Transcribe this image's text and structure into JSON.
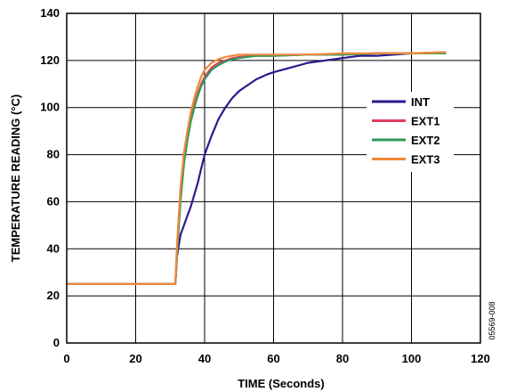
{
  "chart_data": {
    "type": "line",
    "title": "",
    "xlabel": "TIME (Seconds)",
    "ylabel": "TEMPERATURE READING (°C)",
    "xlim": [
      0,
      120
    ],
    "ylim": [
      0,
      140
    ],
    "xticks": [
      0,
      20,
      40,
      60,
      80,
      100,
      120
    ],
    "yticks": [
      0,
      20,
      40,
      60,
      80,
      100,
      120,
      140
    ],
    "grid": true,
    "legend_position": "right",
    "figure_id": "05569-008",
    "series": [
      {
        "name": "INT",
        "color": "#2a1a8c",
        "x": [
          0,
          10,
          20,
          30,
          31.5,
          32,
          33,
          34,
          35,
          36,
          37,
          38,
          39,
          40,
          42,
          44,
          46,
          48,
          50,
          52,
          55,
          58,
          60,
          65,
          70,
          75,
          80,
          85,
          90,
          95,
          100,
          105,
          110
        ],
        "y": [
          25,
          25,
          25,
          25,
          25,
          37,
          46,
          50,
          54,
          58,
          63,
          68,
          74,
          80,
          88,
          95,
          100,
          104,
          107,
          109,
          112,
          114,
          115,
          117,
          119,
          120,
          121,
          122,
          122,
          122.5,
          123,
          123,
          123
        ]
      },
      {
        "name": "EXT1",
        "color": "#e23a5c",
        "x": [
          0,
          10,
          20,
          30,
          31.5,
          32,
          33,
          34,
          35,
          36,
          37,
          38,
          39,
          40,
          42,
          44,
          46,
          48,
          50,
          55,
          60,
          70,
          80,
          90,
          100,
          110
        ],
        "y": [
          25,
          25,
          25,
          25,
          25,
          40,
          62,
          78,
          87,
          95,
          101,
          106,
          110,
          113,
          117,
          119,
          120,
          121,
          121.5,
          122,
          122,
          122.5,
          122.5,
          123,
          123,
          123.5
        ]
      },
      {
        "name": "EXT2",
        "color": "#2e9a5a",
        "x": [
          0,
          10,
          20,
          30,
          31.5,
          32,
          33,
          34,
          35,
          36,
          37,
          38,
          39,
          40,
          42,
          44,
          46,
          48,
          50,
          55,
          60,
          70,
          80,
          90,
          100,
          110
        ],
        "y": [
          25,
          25,
          25,
          25,
          25,
          38,
          60,
          76,
          86,
          94,
          100,
          105,
          109,
          112,
          116,
          118,
          119.5,
          120.5,
          121,
          122,
          122,
          122.5,
          122.5,
          123,
          123,
          123
        ]
      },
      {
        "name": "EXT3",
        "color": "#f0883a",
        "x": [
          0,
          10,
          20,
          30,
          31.5,
          32,
          33,
          34,
          35,
          36,
          37,
          38,
          39,
          40,
          42,
          44,
          46,
          48,
          50,
          55,
          60,
          70,
          80,
          90,
          100,
          110
        ],
        "y": [
          25,
          25,
          25,
          25,
          25,
          42,
          66,
          81,
          90,
          98,
          104,
          109,
          113,
          116,
          119,
          120.5,
          121.5,
          122,
          122.5,
          122.5,
          122.5,
          122.5,
          123,
          123,
          123,
          123.5
        ]
      }
    ]
  }
}
